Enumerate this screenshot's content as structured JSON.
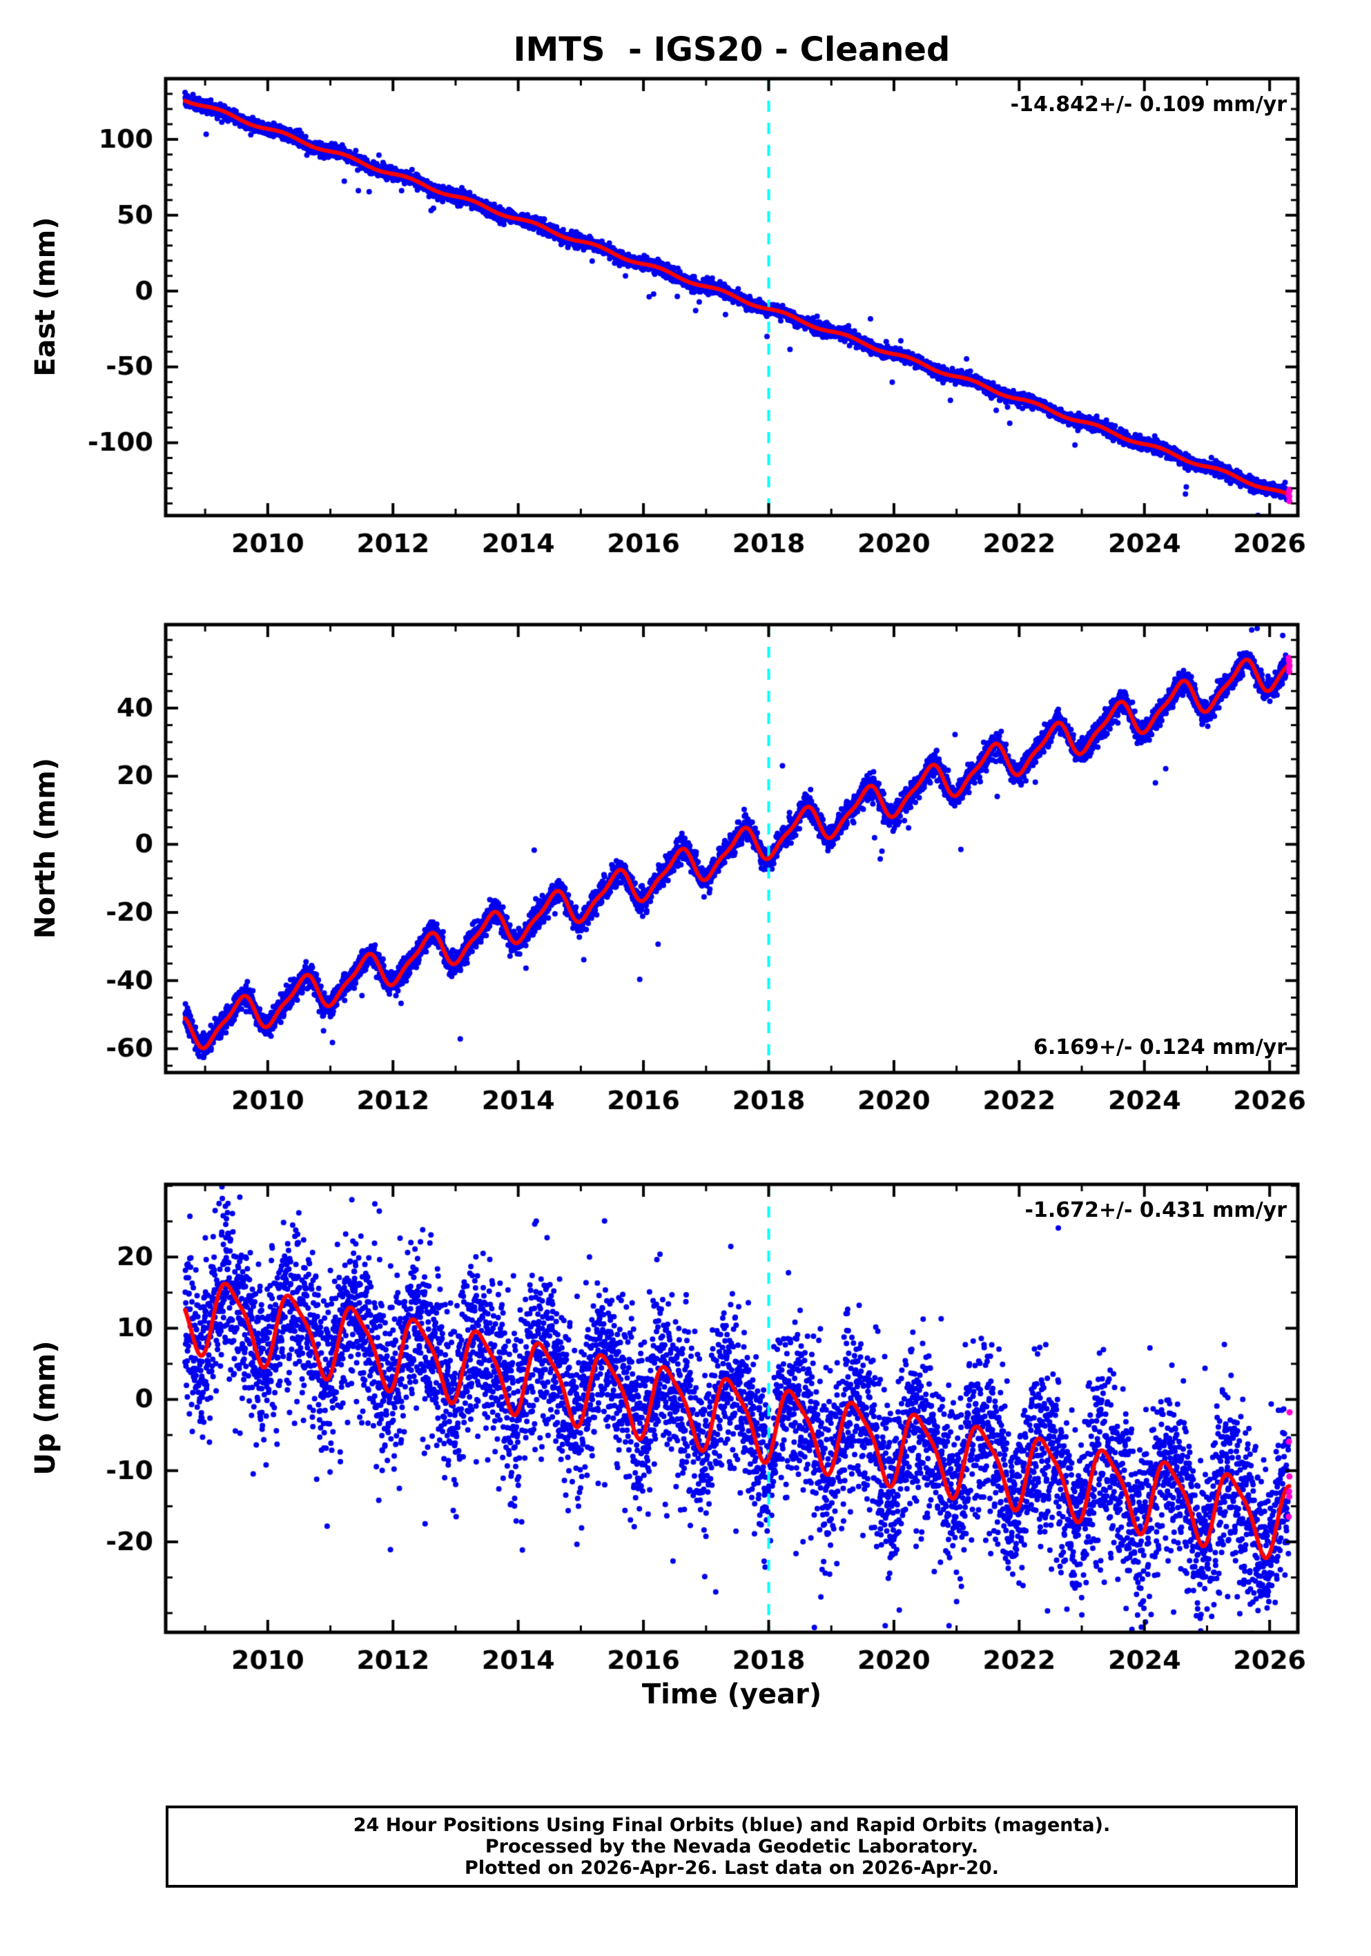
{
  "page": {
    "title": "IMTS  - IGS20 - Cleaned",
    "xlabel": "Time (year)",
    "footer_lines": [
      "24 Hour Positions Using Final Orbits (blue) and Rapid Orbits (magenta).",
      "Processed by the Nevada Geodetic Laboratory.",
      "Plotted on 2026-Apr-26. Last data on 2026-Apr-20."
    ]
  },
  "colors": {
    "final_points": "#0000EE",
    "rapid_points": "#FF00CC",
    "model_line": "#FF0000",
    "event_line": "#00FFFF",
    "frame": "#000000",
    "background": "#FFFFFF"
  },
  "chart_data": [
    {
      "type": "scatter",
      "panel": "east",
      "ylabel": "East (mm)",
      "annotation": "-14.842+/- 0.109 mm/yr",
      "annotation_pos": "top-right",
      "trend_mm_per_yr": -14.842,
      "trend_uncertainty_mm_per_yr": 0.109,
      "xlim": [
        2008.37,
        2026.45
      ],
      "ylim": [
        -148,
        140
      ],
      "yticks": [
        -100,
        -50,
        0,
        50,
        100
      ],
      "y_minor_step": 10,
      "xticks": [
        2010,
        2012,
        2014,
        2016,
        2018,
        2020,
        2022,
        2024,
        2026
      ],
      "x_minor_step": 1,
      "vline_x": 2018,
      "series": {
        "start_year": 2008.68,
        "end_year": 2026.32,
        "value_at_start_mm": 126.5,
        "value_at_end_mm": -135.0,
        "seasonal_amp_mm": 1.2,
        "seasonal_phase": 0.0,
        "semiannual_amp_mm": 0,
        "semiannual_phase": 0,
        "noise_sigma_mm": 2.0,
        "outlier_rate": 0.004,
        "outlier_sigma_mm": 9,
        "rapid_last_days": 6,
        "seed": 7
      }
    },
    {
      "type": "scatter",
      "panel": "north",
      "ylabel": "North (mm)",
      "annotation": "6.169+/- 0.124 mm/yr",
      "annotation_pos": "bottom-right",
      "trend_mm_per_yr": 6.169,
      "trend_uncertainty_mm_per_yr": 0.124,
      "xlim": [
        2008.37,
        2026.45
      ],
      "ylim": [
        -67,
        64.5
      ],
      "yticks": [
        -60,
        -40,
        -20,
        0,
        20,
        40
      ],
      "y_minor_step": 5,
      "xticks": [
        2010,
        2012,
        2014,
        2016,
        2018,
        2020,
        2022,
        2024,
        2026
      ],
      "x_minor_step": 1,
      "vline_x": 2018,
      "series": {
        "start_year": 2008.68,
        "end_year": 2026.32,
        "value_at_start_mm": -56.0,
        "value_at_end_mm": 53.0,
        "seasonal_amp_mm": 5.0,
        "seasonal_phase": 0.3,
        "semiannual_amp_mm": 1.5,
        "semiannual_phase": 0.05,
        "noise_sigma_mm": 1.7,
        "outlier_rate": 0.004,
        "outlier_sigma_mm": 9,
        "rapid_last_days": 6,
        "seed": 13
      }
    },
    {
      "type": "scatter",
      "panel": "up",
      "ylabel": "Up (mm)",
      "annotation": "-1.672+/- 0.431 mm/yr",
      "annotation_pos": "top-right",
      "trend_mm_per_yr": -1.672,
      "trend_uncertainty_mm_per_yr": 0.431,
      "xlim": [
        2008.37,
        2026.45
      ],
      "ylim": [
        -32.7,
        30.2
      ],
      "yticks": [
        -20,
        -10,
        0,
        10,
        20
      ],
      "y_minor_step": 5,
      "xticks": [
        2010,
        2012,
        2014,
        2016,
        2018,
        2020,
        2022,
        2024,
        2026
      ],
      "x_minor_step": 1,
      "vline_x": 2018,
      "series": {
        "start_year": 2008.68,
        "end_year": 2026.32,
        "value_at_start_mm": 12.5,
        "value_at_end_mm": -17.0,
        "seasonal_amp_mm": 5.0,
        "seasonal_phase": 0.15,
        "semiannual_amp_mm": 1.2,
        "semiannual_phase": 0.1,
        "noise_sigma_mm": 6.0,
        "outlier_rate": 0.015,
        "outlier_sigma_mm": 9,
        "rapid_last_days": 6,
        "seed": 21
      }
    }
  ]
}
